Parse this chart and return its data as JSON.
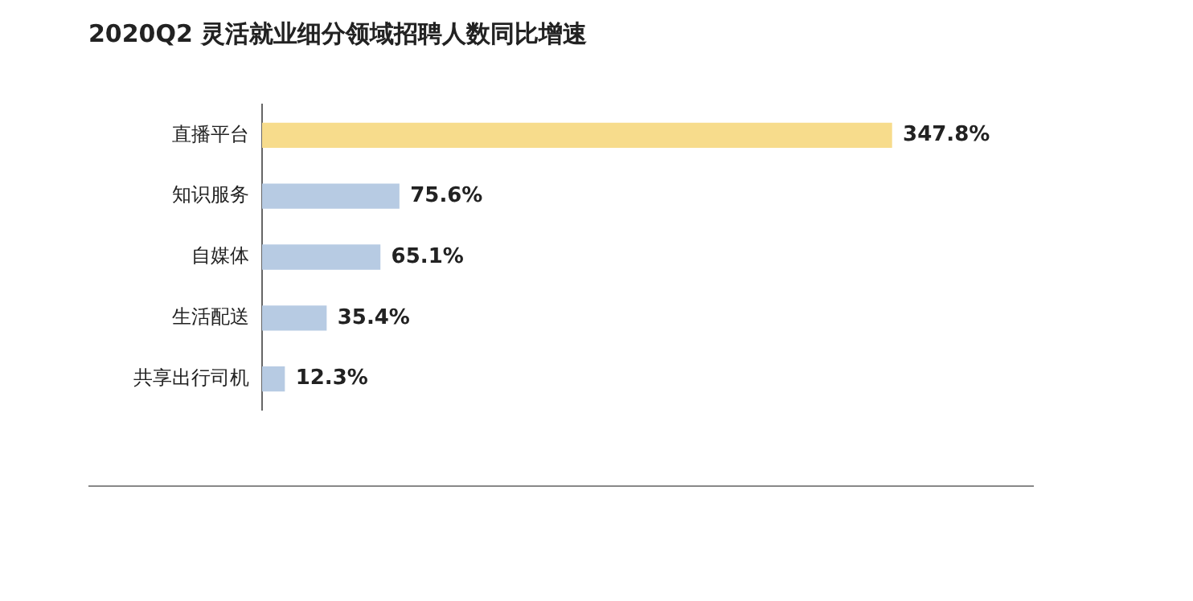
{
  "chart_data": {
    "type": "bar",
    "orientation": "horizontal",
    "title": "2020Q2 灵活就业细分领域招聘人数同比增速",
    "categories": [
      "直播平台",
      "知识服务",
      "自媒体",
      "生活配送",
      "共享出行司机"
    ],
    "values": [
      347.8,
      75.6,
      65.1,
      35.4,
      12.3
    ],
    "value_labels": [
      "347.8%",
      "75.6%",
      "65.1%",
      "35.4%",
      "12.3%"
    ],
    "colors": [
      "#f7dc8c",
      "#b7cbe3",
      "#b7cbe3",
      "#b7cbe3",
      "#b7cbe3"
    ],
    "grid": false,
    "legend": false,
    "tick_labels": "y"
  }
}
